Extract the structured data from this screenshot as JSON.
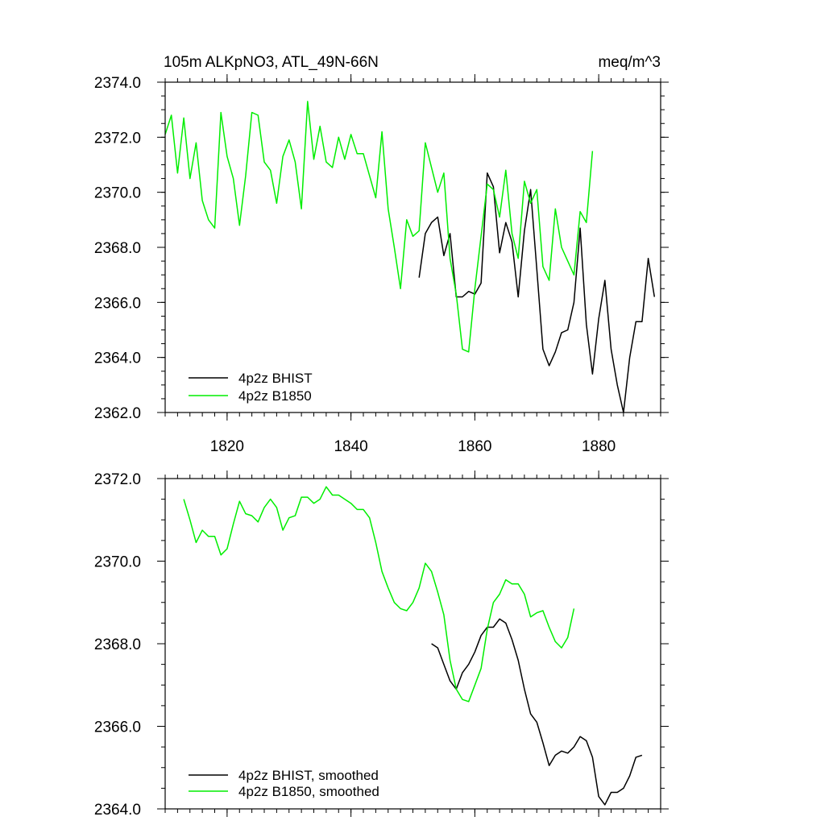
{
  "chart_data": [
    {
      "type": "line",
      "title_left": "105m ALKpNO3, ATL_49N-66N",
      "title_right": "meq/m^3",
      "xlim": [
        1810,
        1890
      ],
      "ylim": [
        2362.0,
        2374.0
      ],
      "x_ticks": [
        1820,
        1840,
        1860,
        1880
      ],
      "y_ticks": [
        "2362.0",
        "2364.0",
        "2366.0",
        "2368.0",
        "2370.0",
        "2372.0",
        "2374.0"
      ],
      "x_minor_step": 2,
      "y_minor_step": 0.5,
      "show_x_labels": true,
      "legend_position": "bottom-left",
      "series": [
        {
          "name": "4p2z BHIST",
          "color": "#000000",
          "x": [
            1851,
            1852,
            1853,
            1854,
            1855,
            1856,
            1857,
            1858,
            1859,
            1860,
            1861,
            1862,
            1863,
            1864,
            1865,
            1866,
            1867,
            1868,
            1869,
            1870,
            1871,
            1872,
            1873,
            1874,
            1875,
            1876,
            1877,
            1878,
            1879,
            1880,
            1881,
            1882,
            1883,
            1884,
            1885,
            1886,
            1887,
            1888,
            1889
          ],
          "y": [
            2366.9,
            2368.5,
            2368.9,
            2369.1,
            2367.7,
            2368.5,
            2366.2,
            2366.2,
            2366.4,
            2366.3,
            2366.7,
            2370.7,
            2370.2,
            2367.8,
            2368.9,
            2368.2,
            2366.2,
            2368.6,
            2370.1,
            2367.2,
            2364.3,
            2363.7,
            2364.2,
            2364.9,
            2365.0,
            2366.0,
            2368.7,
            2365.2,
            2363.4,
            2365.4,
            2366.8,
            2364.3,
            2363.0,
            2362.0,
            2364.0,
            2365.3,
            2365.3,
            2367.6,
            2366.2
          ]
        },
        {
          "name": "4p2z B1850",
          "color": "#00ee00",
          "x": [
            1810,
            1811,
            1812,
            1813,
            1814,
            1815,
            1816,
            1817,
            1818,
            1819,
            1820,
            1821,
            1822,
            1823,
            1824,
            1825,
            1826,
            1827,
            1828,
            1829,
            1830,
            1831,
            1832,
            1833,
            1834,
            1835,
            1836,
            1837,
            1838,
            1839,
            1840,
            1841,
            1842,
            1843,
            1844,
            1845,
            1846,
            1847,
            1848,
            1849,
            1850,
            1851,
            1852,
            1853,
            1854,
            1855,
            1856,
            1857,
            1858,
            1859,
            1860,
            1861,
            1862,
            1863,
            1864,
            1865,
            1866,
            1867,
            1868,
            1869,
            1870,
            1871,
            1872,
            1873,
            1874,
            1875,
            1876,
            1877,
            1878,
            1879
          ],
          "y": [
            2372.1,
            2372.8,
            2370.7,
            2372.7,
            2370.5,
            2371.8,
            2369.7,
            2369.0,
            2368.7,
            2372.9,
            2371.3,
            2370.5,
            2368.8,
            2370.6,
            2372.9,
            2372.8,
            2371.1,
            2370.8,
            2369.6,
            2371.3,
            2371.9,
            2371.1,
            2369.4,
            2373.3,
            2371.2,
            2372.4,
            2371.1,
            2370.9,
            2372.0,
            2371.2,
            2372.1,
            2371.4,
            2371.4,
            2370.6,
            2369.8,
            2372.2,
            2369.4,
            2368.0,
            2366.5,
            2369.0,
            2368.4,
            2368.6,
            2371.8,
            2370.9,
            2370.0,
            2370.7,
            2367.6,
            2366.3,
            2364.3,
            2364.2,
            2366.5,
            2368.4,
            2370.3,
            2370.1,
            2369.1,
            2370.8,
            2368.5,
            2367.6,
            2370.4,
            2369.6,
            2370.1,
            2367.3,
            2366.8,
            2369.4,
            2368.0,
            2367.5,
            2367.0,
            2369.3,
            2368.9,
            2371.5
          ]
        }
      ]
    },
    {
      "type": "line",
      "xlim": [
        1810,
        1890
      ],
      "ylim": [
        2364.0,
        2372.0
      ],
      "x_ticks": [
        1820,
        1840,
        1860,
        1880
      ],
      "y_ticks": [
        "2364.0",
        "2366.0",
        "2368.0",
        "2370.0",
        "2372.0"
      ],
      "x_minor_step": 2,
      "y_minor_step": 0.5,
      "show_x_labels": false,
      "legend_position": "bottom-left",
      "series": [
        {
          "name": "4p2z BHIST, smoothed",
          "color": "#000000",
          "x": [
            1853,
            1854,
            1855,
            1856,
            1857,
            1858,
            1859,
            1860,
            1861,
            1862,
            1863,
            1864,
            1865,
            1866,
            1867,
            1868,
            1869,
            1870,
            1871,
            1872,
            1873,
            1874,
            1875,
            1876,
            1877,
            1878,
            1879,
            1880,
            1881,
            1882,
            1883,
            1884,
            1885,
            1886,
            1887
          ],
          "y": [
            2368.0,
            2367.9,
            2367.5,
            2367.1,
            2366.9,
            2367.3,
            2367.5,
            2367.8,
            2368.2,
            2368.4,
            2368.4,
            2368.6,
            2368.5,
            2368.1,
            2367.6,
            2366.9,
            2366.3,
            2366.1,
            2365.6,
            2365.05,
            2365.3,
            2365.4,
            2365.35,
            2365.5,
            2365.75,
            2365.65,
            2365.25,
            2364.3,
            2364.1,
            2364.4,
            2364.4,
            2364.5,
            2364.8,
            2365.25,
            2365.3
          ]
        },
        {
          "name": "4p2z B1850, smoothed",
          "color": "#00ee00",
          "x": [
            1813,
            1814,
            1815,
            1816,
            1817,
            1818,
            1819,
            1820,
            1821,
            1822,
            1823,
            1824,
            1825,
            1826,
            1827,
            1828,
            1829,
            1830,
            1831,
            1832,
            1833,
            1834,
            1835,
            1836,
            1837,
            1838,
            1839,
            1840,
            1841,
            1842,
            1843,
            1844,
            1845,
            1846,
            1847,
            1848,
            1849,
            1850,
            1851,
            1852,
            1853,
            1854,
            1855,
            1856,
            1857,
            1858,
            1859,
            1860,
            1861,
            1862,
            1863,
            1864,
            1865,
            1866,
            1867,
            1868,
            1869,
            1870,
            1871,
            1872,
            1873,
            1874,
            1875,
            1876
          ],
          "y": [
            2371.5,
            2371.0,
            2370.45,
            2370.75,
            2370.6,
            2370.6,
            2370.15,
            2370.3,
            2370.9,
            2371.45,
            2371.15,
            2371.1,
            2370.95,
            2371.3,
            2371.5,
            2371.3,
            2370.75,
            2371.05,
            2371.1,
            2371.55,
            2371.55,
            2371.4,
            2371.5,
            2371.8,
            2371.6,
            2371.6,
            2371.5,
            2371.4,
            2371.25,
            2371.25,
            2371.05,
            2370.45,
            2369.75,
            2369.35,
            2369.0,
            2368.85,
            2368.8,
            2369.0,
            2369.35,
            2369.95,
            2369.75,
            2369.25,
            2368.7,
            2367.6,
            2366.9,
            2366.65,
            2366.6,
            2367.0,
            2367.4,
            2368.35,
            2369.0,
            2369.2,
            2369.55,
            2369.45,
            2369.45,
            2369.2,
            2368.65,
            2368.75,
            2368.8,
            2368.4,
            2368.05,
            2367.9,
            2368.15,
            2368.85
          ]
        }
      ]
    }
  ]
}
